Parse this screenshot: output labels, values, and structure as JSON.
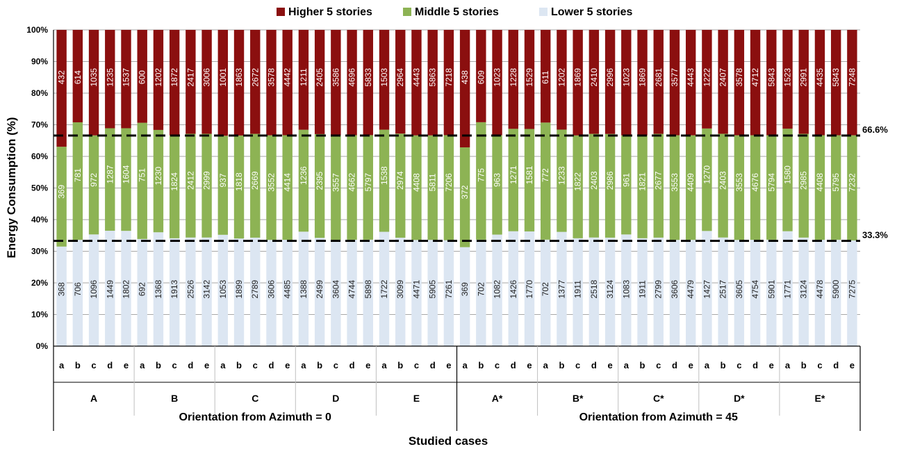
{
  "chart_data": {
    "type": "bar",
    "stacked": true,
    "normalized": true,
    "ylabel": "Energy Consumption (%)",
    "xlabel": "Studied cases",
    "yticks": [
      "0%",
      "10%",
      "20%",
      "30%",
      "40%",
      "50%",
      "60%",
      "70%",
      "80%",
      "90%",
      "100%"
    ],
    "ylim": [
      0,
      100
    ],
    "grid": true,
    "legend_position": "top",
    "sub_categories": [
      "a",
      "b",
      "c",
      "d",
      "e"
    ],
    "groups": [
      "A",
      "B",
      "C",
      "D",
      "E",
      "A*",
      "B*",
      "C*",
      "D*",
      "E*"
    ],
    "orientations": [
      "Orientation from Azimuth = 0",
      "Orientation from Azimuth = 45"
    ],
    "reference_lines": [
      {
        "value": 66.6,
        "label": "66.6%"
      },
      {
        "value": 33.3,
        "label": "33.3%"
      }
    ],
    "series": [
      {
        "name": "Lower 5 stories",
        "color": "#dce6f2",
        "values": [
          368,
          706,
          1096,
          1449,
          1802,
          692,
          1368,
          1913,
          2526,
          3142,
          1053,
          1899,
          2789,
          3606,
          4485,
          1388,
          2499,
          3604,
          4744,
          5898,
          1722,
          3099,
          4471,
          5905,
          7261,
          369,
          702,
          1082,
          1426,
          1770,
          702,
          1377,
          1911,
          2518,
          3124,
          1083,
          1911,
          2799,
          3606,
          4479,
          1427,
          2517,
          3605,
          4754,
          5901,
          1771,
          3124,
          4478,
          5900,
          7275
        ]
      },
      {
        "name": "Middle 5 stories",
        "color": "#8db354",
        "values": [
          369,
          781,
          972,
          1287,
          1604,
          751,
          1230,
          1824,
          2412,
          2999,
          937,
          1818,
          2669,
          3552,
          4414,
          1236,
          2395,
          3557,
          4662,
          5797,
          1538,
          2974,
          4408,
          5811,
          7206,
          372,
          775,
          963,
          1271,
          1581,
          772,
          1233,
          1822,
          2403,
          2986,
          961,
          1821,
          2677,
          3553,
          4409,
          1270,
          2403,
          3553,
          4676,
          5794,
          1580,
          2985,
          4408,
          5795,
          7232
        ]
      },
      {
        "name": "Higher 5 stories",
        "color": "#8b0f0f",
        "values": [
          432,
          614,
          1035,
          1235,
          1537,
          600,
          1202,
          1872,
          2417,
          3006,
          1001,
          1863,
          2672,
          3578,
          4442,
          1211,
          2405,
          3586,
          4696,
          5833,
          1503,
          2964,
          4443,
          5863,
          7218,
          438,
          609,
          1023,
          1228,
          1529,
          611,
          1202,
          1869,
          2410,
          2996,
          1023,
          1869,
          2681,
          3577,
          4443,
          1222,
          2407,
          3578,
          4712,
          5843,
          1523,
          2991,
          4435,
          5843,
          7248
        ]
      }
    ]
  }
}
